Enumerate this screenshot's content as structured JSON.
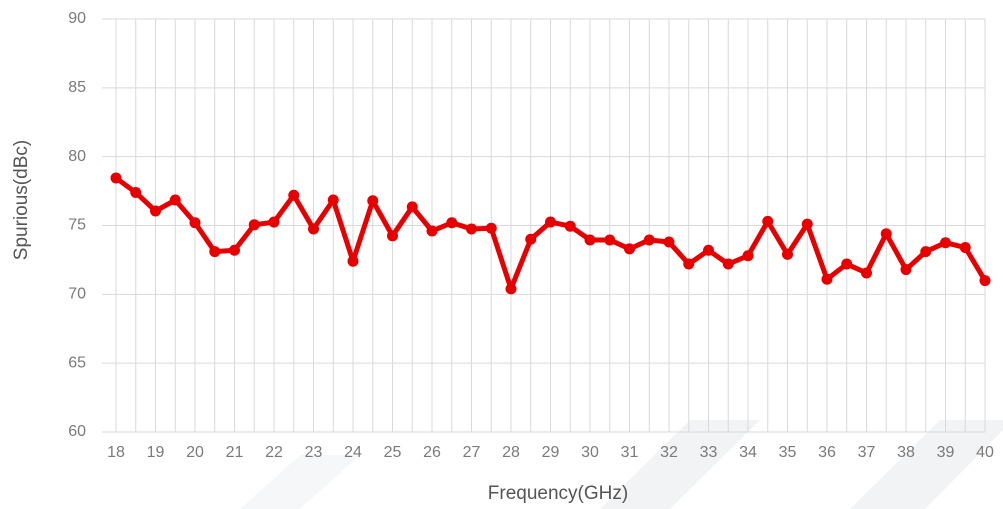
{
  "chart_data": {
    "type": "line",
    "x_label": "Frequency(GHz)",
    "y_label": "Spurious(dBc)",
    "x": [
      18,
      18.5,
      19,
      19.5,
      20,
      20.5,
      21,
      21.5,
      22,
      22.5,
      23,
      23.5,
      24,
      24.5,
      25,
      25.5,
      26,
      26.5,
      27,
      27.5,
      28,
      28.5,
      29,
      29.5,
      30,
      30.5,
      31,
      31.5,
      32,
      32.5,
      33,
      33.5,
      34,
      34.5,
      35,
      35.5,
      36,
      36.5,
      37,
      37.5,
      38,
      38.5,
      39,
      39.5,
      40
    ],
    "series": [
      {
        "name": "Spurious",
        "color": "#e80000",
        "values": [
          78.45,
          77.4,
          76.05,
          76.85,
          75.2,
          73.1,
          73.2,
          75.05,
          75.25,
          77.2,
          74.75,
          76.85,
          72.4,
          76.8,
          74.25,
          76.35,
          74.6,
          75.2,
          74.75,
          74.8,
          70.4,
          74.0,
          75.25,
          74.95,
          73.95,
          73.95,
          73.3,
          73.95,
          73.8,
          72.2,
          73.2,
          72.2,
          72.8,
          75.3,
          72.9,
          75.1,
          71.1,
          72.2,
          71.55,
          74.4,
          71.8,
          73.1,
          73.75,
          73.4,
          71.0
        ]
      }
    ],
    "xlim": [
      18,
      40
    ],
    "xticks": [
      18,
      19,
      20,
      21,
      22,
      23,
      24,
      25,
      26,
      27,
      28,
      29,
      30,
      31,
      32,
      33,
      34,
      35,
      36,
      37,
      38,
      39,
      40
    ],
    "ylim": [
      60,
      90
    ],
    "yticks": [
      60,
      65,
      70,
      75,
      80,
      85,
      90
    ],
    "grid": true
  }
}
